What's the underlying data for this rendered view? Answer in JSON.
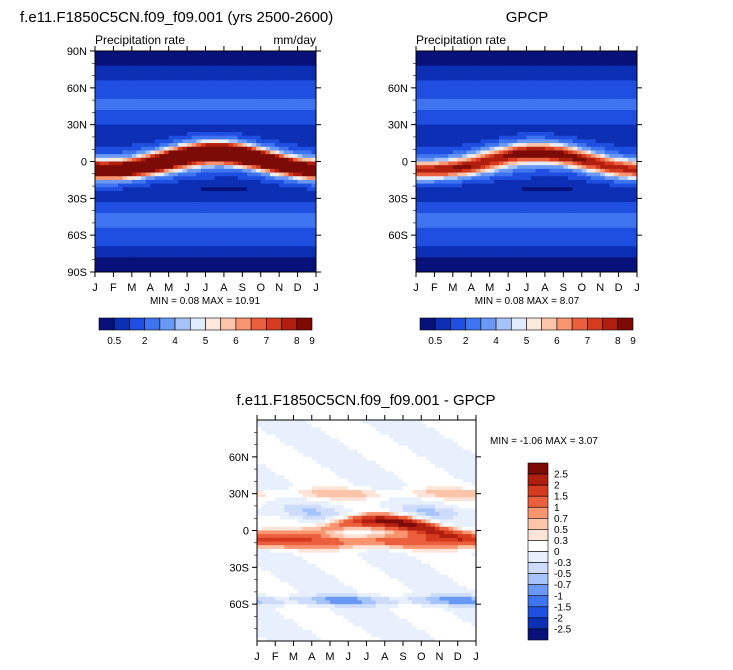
{
  "colors": {
    "abs_scale": [
      "#08117a",
      "#0c2fb4",
      "#1f4fe0",
      "#3f74f0",
      "#6a98f5",
      "#a7c4fa",
      "#e2ecfc",
      "#fde8dc",
      "#fcc5aa",
      "#f8946f",
      "#ec5f3d",
      "#d63a1f",
      "#b01e0f",
      "#7c0a06"
    ],
    "diff_scale": [
      "#08117a",
      "#0c2fb4",
      "#1f4fe0",
      "#3f74f0",
      "#6a98f5",
      "#a7c4fa",
      "#cddcfa",
      "#e9f0fd",
      "#ffffff",
      "#fde4d8",
      "#fcc5aa",
      "#f8946f",
      "#ec5f3d",
      "#d63a1f",
      "#b01e0f",
      "#7c0a06"
    ]
  },
  "chart_data": [
    {
      "type": "heatmap",
      "title": "f.e11.F1850C5CN.f09_f09.001 (yrs 2500-2600)",
      "left_label": "Precipitation rate",
      "right_label": "mm/day",
      "x_ticks": [
        "J",
        "F",
        "M",
        "A",
        "M",
        "J",
        "J",
        "A",
        "S",
        "O",
        "N",
        "D",
        "J"
      ],
      "y_ticks": [
        "90N",
        "60N",
        "30N",
        "0",
        "30S",
        "60S",
        "90S"
      ],
      "ylim": [
        -90,
        90
      ],
      "stats": "MIN =   0.08 MAX =  10.91",
      "colorbar_labels": [
        "0.5",
        "2",
        "4",
        "5",
        "6",
        "7",
        "8",
        "9"
      ],
      "levels": [
        0.5,
        1,
        2,
        3,
        4,
        4.5,
        5,
        5.5,
        6,
        6.5,
        7,
        7.5,
        8,
        9
      ],
      "itcz_peak": 10.9
    },
    {
      "type": "heatmap",
      "title": "GPCP",
      "left_label": "Precipitation rate",
      "right_label": "",
      "x_ticks": [
        "J",
        "F",
        "M",
        "A",
        "M",
        "J",
        "J",
        "A",
        "S",
        "O",
        "N",
        "D",
        "J"
      ],
      "y_ticks": [
        "60N",
        "30N",
        "0",
        "30S",
        "60S"
      ],
      "ylim": [
        -90,
        90
      ],
      "stats": "MIN =   0.08 MAX =    8.07",
      "colorbar_labels": [
        "0.5",
        "2",
        "4",
        "5",
        "6",
        "7",
        "8",
        "9"
      ],
      "levels": [
        0.5,
        1,
        2,
        3,
        4,
        4.5,
        5,
        5.5,
        6,
        6.5,
        7,
        7.5,
        8,
        9
      ],
      "itcz_peak": 8.1
    },
    {
      "type": "heatmap",
      "title": "f.e11.F1850C5CN.f09_f09.001 - GPCP",
      "x_ticks": [
        "J",
        "F",
        "M",
        "A",
        "M",
        "J",
        "J",
        "A",
        "S",
        "O",
        "N",
        "D",
        "J"
      ],
      "y_ticks": [
        "60N",
        "30N",
        "0",
        "30S",
        "60S"
      ],
      "ylim": [
        -90,
        90
      ],
      "stats": "MIN =  -1.06 MAX =   3.07",
      "colorbar_labels": [
        "2.5",
        "2",
        "1.5",
        "1",
        "0.7",
        "0.5",
        "0.3",
        "0",
        "-0.3",
        "-0.5",
        "-0.7",
        "-1",
        "-1.5",
        "-2",
        "-2.5"
      ],
      "levels": [
        -2.5,
        -2,
        -1.5,
        -1,
        -0.7,
        -0.5,
        -0.3,
        0,
        0.3,
        0.5,
        0.7,
        1,
        1.5,
        2,
        2.5
      ]
    }
  ]
}
